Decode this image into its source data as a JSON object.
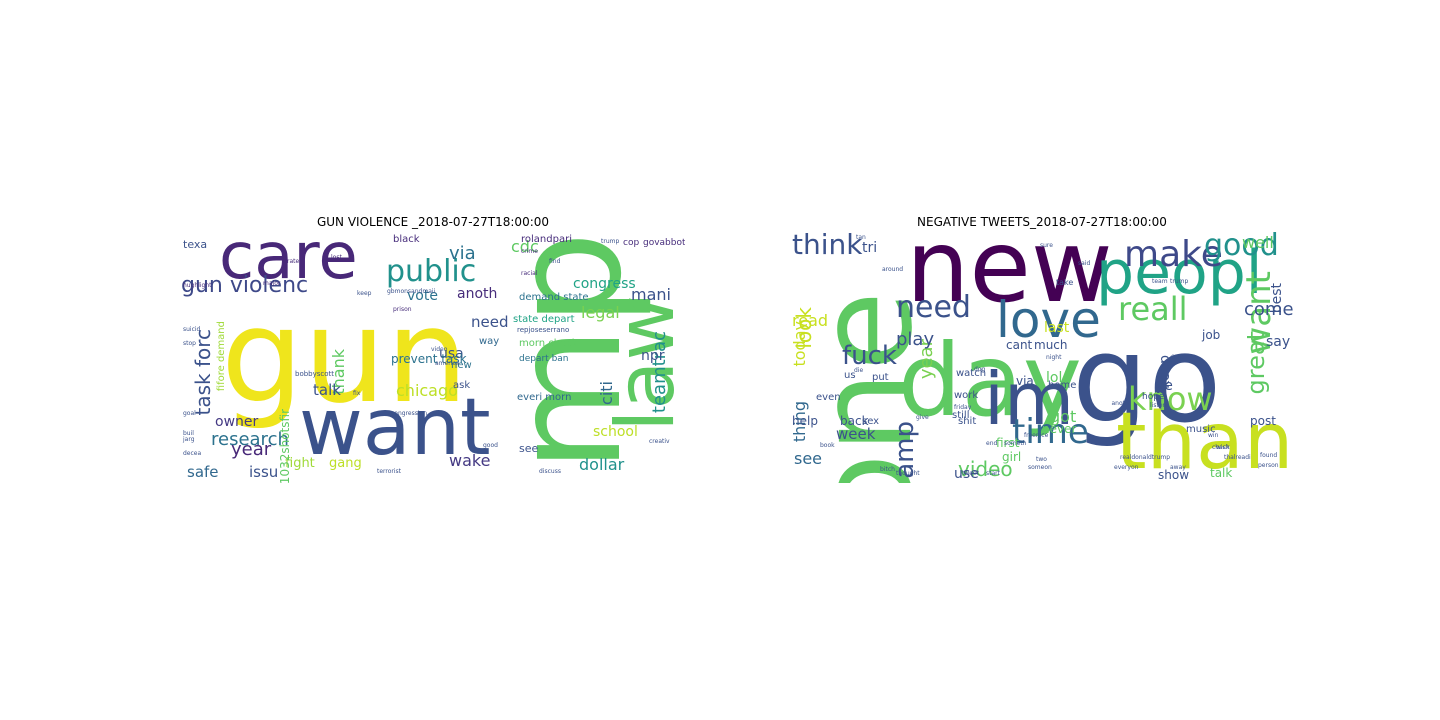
{
  "chart_data": [
    {
      "type": "wordcloud",
      "title": "GUN VIOLENCE _2018-07-27T18:00:00",
      "colormap": "viridis",
      "words": [
        {
          "text": "gun",
          "weight": 100,
          "color": "#efe51c"
        },
        {
          "text": "amp",
          "weight": 98,
          "color": "#5ec962"
        },
        {
          "text": "want",
          "weight": 72,
          "color": "#3b528b"
        },
        {
          "text": "care",
          "weight": 62,
          "color": "#482878"
        },
        {
          "text": "law",
          "weight": 58,
          "color": "#5ec962"
        },
        {
          "text": "public",
          "weight": 36,
          "color": "#21918c"
        },
        {
          "text": "gun violenc",
          "weight": 26,
          "color": "#3e4989"
        },
        {
          "text": "task forc",
          "weight": 22,
          "color": "#3b528b"
        },
        {
          "text": "research",
          "weight": 22,
          "color": "#2c728e"
        },
        {
          "text": "year",
          "weight": 20,
          "color": "#482878"
        },
        {
          "text": "thank",
          "weight": 19,
          "color": "#5ec962"
        },
        {
          "text": "teamtrac",
          "weight": 18,
          "color": "#21918c"
        },
        {
          "text": "legal",
          "weight": 18,
          "color": "#7ad151"
        },
        {
          "text": "chicago",
          "weight": 18,
          "color": "#bddf26"
        },
        {
          "text": "citi",
          "weight": 18,
          "color": "#31688e"
        },
        {
          "text": "mani",
          "weight": 18,
          "color": "#3b528b"
        },
        {
          "text": "via",
          "weight": 17,
          "color": "#2c728e"
        },
        {
          "text": "congress",
          "weight": 16,
          "color": "#20a386"
        },
        {
          "text": "wake",
          "weight": 16,
          "color": "#443983"
        },
        {
          "text": "dollar",
          "weight": 16,
          "color": "#21918c"
        },
        {
          "text": "safe",
          "weight": 16,
          "color": "#31688e"
        },
        {
          "text": "issu",
          "weight": 16,
          "color": "#3b528b"
        },
        {
          "text": "talk",
          "weight": 15,
          "color": "#3b528b"
        },
        {
          "text": "owner",
          "weight": 15,
          "color": "#443983"
        },
        {
          "text": "cdc",
          "weight": 15,
          "color": "#5ec962"
        },
        {
          "text": "need",
          "weight": 15,
          "color": "#3b528b"
        },
        {
          "text": "anoth",
          "weight": 14,
          "color": "#472d7b"
        },
        {
          "text": "school",
          "weight": 14,
          "color": "#bddf26"
        },
        {
          "text": "npr",
          "weight": 13,
          "color": "#3b528b"
        },
        {
          "text": "vote",
          "weight": 13,
          "color": "#2c728e"
        },
        {
          "text": "fight",
          "weight": 13,
          "color": "#a0da39"
        },
        {
          "text": "gang",
          "weight": 13,
          "color": "#bddf26"
        },
        {
          "text": "usa",
          "weight": 12,
          "color": "#3b528b"
        },
        {
          "text": "prevent task",
          "weight": 11,
          "color": "#2c728e"
        },
        {
          "text": "1032shotsfir",
          "weight": 11,
          "color": "#5ec962"
        },
        {
          "text": "texa",
          "weight": 11,
          "color": "#3b528b"
        },
        {
          "text": "black",
          "weight": 10,
          "color": "#472d7b"
        },
        {
          "text": "rolandpari",
          "weight": 10,
          "color": "#472d7b"
        },
        {
          "text": "demand state",
          "weight": 9,
          "color": "#2c728e"
        },
        {
          "text": "morn check",
          "weight": 10,
          "color": "#5ec962"
        },
        {
          "text": "everi morn",
          "weight": 10,
          "color": "#31688e"
        },
        {
          "text": "state depart",
          "weight": 10,
          "color": "#20a386"
        },
        {
          "text": "depart ban",
          "weight": 8,
          "color": "#2c728e"
        },
        {
          "text": "ask",
          "weight": 10,
          "color": "#3b528b"
        },
        {
          "text": "way",
          "weight": 9,
          "color": "#31688e"
        },
        {
          "text": "new",
          "weight": 9,
          "color": "#2c728e"
        },
        {
          "text": "see",
          "weight": 10,
          "color": "#3b528b"
        },
        {
          "text": "cop",
          "weight": 8,
          "color": "#472d7b"
        },
        {
          "text": "govabbott",
          "weight": 8,
          "color": "#472d7b"
        },
        {
          "text": "bobbyscott",
          "weight": 7,
          "color": "#3b528b"
        },
        {
          "text": "repjoseserrano",
          "weight": 7,
          "color": "#3b528b"
        },
        {
          "text": "gbmonsandmaii",
          "weight": 5,
          "color": "#3b528b"
        },
        {
          "text": "fifore demand",
          "weight": 8,
          "color": "#a0da39"
        },
        {
          "text": "major",
          "weight": 5,
          "color": "#472d7b"
        },
        {
          "text": "hughlight",
          "weight": 5,
          "color": "#472d7b"
        },
        {
          "text": "suicid",
          "weight": 5,
          "color": "#3b528b"
        },
        {
          "text": "prison",
          "weight": 5,
          "color": "#472d7b"
        },
        {
          "text": "crime",
          "weight": 5,
          "color": "#472d7b"
        },
        {
          "text": "racial",
          "weight": 5,
          "color": "#472d7b"
        },
        {
          "text": "video",
          "weight": 5,
          "color": "#3b528b"
        },
        {
          "text": "lost",
          "weight": 5,
          "color": "#472d7b"
        },
        {
          "text": "rate",
          "weight": 5,
          "color": "#472d7b"
        },
        {
          "text": "america",
          "weight": 5,
          "color": "#3b528b"
        },
        {
          "text": "congression",
          "weight": 5,
          "color": "#3b528b"
        },
        {
          "text": "terrorist",
          "weight": 5,
          "color": "#3b528b"
        },
        {
          "text": "discuss",
          "weight": 5,
          "color": "#3b528b"
        },
        {
          "text": "fix",
          "weight": 5,
          "color": "#3b528b"
        },
        {
          "text": "good",
          "weight": 5,
          "color": "#3b528b"
        },
        {
          "text": "creativ",
          "weight": 5,
          "color": "#3b528b"
        },
        {
          "text": "goal",
          "weight": 5,
          "color": "#3b528b"
        },
        {
          "text": "decea",
          "weight": 5,
          "color": "#3b528b"
        },
        {
          "text": "stop",
          "weight": 5,
          "color": "#3b528b"
        },
        {
          "text": "buil",
          "weight": 5,
          "color": "#3b528b"
        },
        {
          "text": "jarg",
          "weight": 5,
          "color": "#3b528b"
        },
        {
          "text": "find",
          "weight": 5,
          "color": "#3b528b"
        },
        {
          "text": "trump",
          "weight": 5,
          "color": "#3b528b"
        },
        {
          "text": "keep",
          "weight": 5,
          "color": "#3b528b"
        }
      ]
    },
    {
      "type": "wordcloud",
      "title": "NEGATIVE TWEETS_2018-07-27T18:00:00",
      "colormap": "viridis",
      "words": [
        {
          "text": "new",
          "weight": 100,
          "color": "#440154"
        },
        {
          "text": "one",
          "weight": 95,
          "color": "#5ec962"
        },
        {
          "text": "go",
          "weight": 92,
          "color": "#3b528b"
        },
        {
          "text": "day",
          "weight": 78,
          "color": "#5ec962"
        },
        {
          "text": "peopl",
          "weight": 60,
          "color": "#20a386"
        },
        {
          "text": "thank",
          "weight": 55,
          "color": "#c8e020"
        },
        {
          "text": "love",
          "weight": 42,
          "color": "#31688e"
        },
        {
          "text": "im",
          "weight": 48,
          "color": "#3b528b"
        },
        {
          "text": "time",
          "weight": 30,
          "color": "#31688e"
        },
        {
          "text": "make",
          "weight": 26,
          "color": "#3e4989"
        },
        {
          "text": "good",
          "weight": 24,
          "color": "#21918c"
        },
        {
          "text": "need",
          "weight": 24,
          "color": "#3b528b"
        },
        {
          "text": "want",
          "weight": 24,
          "color": "#5ec962"
        },
        {
          "text": "know",
          "weight": 22,
          "color": "#7ad151"
        },
        {
          "text": "reall",
          "weight": 22,
          "color": "#5ec962"
        },
        {
          "text": "think",
          "weight": 20,
          "color": "#3b528b"
        },
        {
          "text": "fuck",
          "weight": 18,
          "color": "#3b528b"
        },
        {
          "text": "amp",
          "weight": 18,
          "color": "#3b528b"
        },
        {
          "text": "great",
          "weight": 18,
          "color": "#5ec962"
        },
        {
          "text": "video",
          "weight": 16,
          "color": "#5ec962"
        },
        {
          "text": "year",
          "weight": 16,
          "color": "#7ad151"
        },
        {
          "text": "look",
          "weight": 16,
          "color": "#c8e020"
        },
        {
          "text": "play",
          "weight": 16,
          "color": "#3b528b"
        },
        {
          "text": "come",
          "weight": 16,
          "color": "#3b528b"
        },
        {
          "text": "today",
          "weight": 14,
          "color": "#c8e020"
        },
        {
          "text": "thing",
          "weight": 14,
          "color": "#31688e"
        },
        {
          "text": "well",
          "weight": 14,
          "color": "#5ec962"
        },
        {
          "text": "got",
          "weight": 14,
          "color": "#5ec962"
        },
        {
          "text": "read",
          "weight": 13,
          "color": "#c8e020"
        },
        {
          "text": "see",
          "weight": 13,
          "color": "#31688e"
        },
        {
          "text": "week",
          "weight": 12,
          "color": "#3b528b"
        },
        {
          "text": "say",
          "weight": 12,
          "color": "#3b528b"
        },
        {
          "text": "keep",
          "weight": 12,
          "color": "#3b528b"
        },
        {
          "text": "best",
          "weight": 11,
          "color": "#3b528b"
        },
        {
          "text": "tri",
          "weight": 11,
          "color": "#3b528b"
        },
        {
          "text": "last",
          "weight": 11,
          "color": "#c8e020"
        },
        {
          "text": "use",
          "weight": 11,
          "color": "#3b528b"
        },
        {
          "text": "lol",
          "weight": 10,
          "color": "#5ec962"
        },
        {
          "text": "help",
          "weight": 10,
          "color": "#3b528b"
        },
        {
          "text": "back",
          "weight": 10,
          "color": "#3b528b"
        },
        {
          "text": "job",
          "weight": 10,
          "color": "#3b528b"
        },
        {
          "text": "via",
          "weight": 10,
          "color": "#3b528b"
        },
        {
          "text": "girl",
          "weight": 10,
          "color": "#5ec962"
        },
        {
          "text": "show",
          "weight": 9,
          "color": "#3b528b"
        },
        {
          "text": "talk",
          "weight": 9,
          "color": "#5ec962"
        },
        {
          "text": "post",
          "weight": 9,
          "color": "#3b528b"
        },
        {
          "text": "never",
          "weight": 9,
          "color": "#5ec962"
        },
        {
          "text": "first",
          "weight": 9,
          "color": "#5ec962"
        },
        {
          "text": "cant",
          "weight": 9,
          "color": "#3b528b"
        },
        {
          "text": "much",
          "weight": 9,
          "color": "#3b528b"
        },
        {
          "text": "home",
          "weight": 8,
          "color": "#3b528b"
        },
        {
          "text": "work",
          "weight": 8,
          "color": "#3b528b"
        },
        {
          "text": "watch",
          "weight": 8,
          "color": "#3b528b"
        },
        {
          "text": "put",
          "weight": 8,
          "color": "#3b528b"
        },
        {
          "text": "even",
          "weight": 8,
          "color": "#3b528b"
        },
        {
          "text": "still",
          "weight": 8,
          "color": "#3b528b"
        },
        {
          "text": "us",
          "weight": 8,
          "color": "#3b528b"
        },
        {
          "text": "sex",
          "weight": 7,
          "color": "#3b528b"
        },
        {
          "text": "shit",
          "weight": 7,
          "color": "#3b528b"
        },
        {
          "text": "music",
          "weight": 7,
          "color": "#3b528b"
        },
        {
          "text": "hope",
          "weight": 6,
          "color": "#3b528b"
        },
        {
          "text": "ye",
          "weight": 8,
          "color": "#3b528b"
        },
        {
          "text": "take",
          "weight": 6,
          "color": "#3b528b"
        },
        {
          "text": "night",
          "weight": 5,
          "color": "#3b528b"
        },
        {
          "text": "listen",
          "weight": 5,
          "color": "#3b528b"
        },
        {
          "text": "start",
          "weight": 5,
          "color": "#3b528b"
        },
        {
          "text": "give",
          "weight": 5,
          "color": "#3b528b"
        },
        {
          "text": "tweet",
          "weight": 5,
          "color": "#3b528b"
        },
        {
          "text": "person",
          "weight": 5,
          "color": "#3b528b"
        },
        {
          "text": "bitch",
          "weight": 5,
          "color": "#3b528b"
        },
        {
          "text": "thought",
          "weight": 5,
          "color": "#3b528b"
        },
        {
          "text": "book",
          "weight": 5,
          "color": "#3b528b"
        },
        {
          "text": "check",
          "weight": 5,
          "color": "#3b528b"
        },
        {
          "text": "found",
          "weight": 5,
          "color": "#3b528b"
        },
        {
          "text": "done",
          "weight": 5,
          "color": "#3b528b"
        },
        {
          "text": "end",
          "weight": 5,
          "color": "#3b528b"
        },
        {
          "text": "two",
          "weight": 5,
          "color": "#3b528b"
        },
        {
          "text": "someth",
          "weight": 5,
          "color": "#3b528b"
        },
        {
          "text": "everyon",
          "weight": 5,
          "color": "#3b528b"
        },
        {
          "text": "win",
          "weight": 5,
          "color": "#3b528b"
        },
        {
          "text": "around",
          "weight": 5,
          "color": "#3b528b"
        },
        {
          "text": "friday",
          "weight": 5,
          "color": "#3b528b"
        },
        {
          "text": "trump",
          "weight": 5,
          "color": "#3b528b"
        },
        {
          "text": "team",
          "weight": 5,
          "color": "#3b528b"
        },
        {
          "text": "said",
          "weight": 5,
          "color": "#3b528b"
        },
        {
          "text": "sure",
          "weight": 5,
          "color": "#3b528b"
        },
        {
          "text": "dog",
          "weight": 5,
          "color": "#3b528b"
        },
        {
          "text": "tan",
          "weight": 5,
          "color": "#3b528b"
        },
        {
          "text": "someon",
          "weight": 5,
          "color": "#3b528b"
        },
        {
          "text": "realdonaldtrump",
          "weight": 5,
          "color": "#3b528b"
        },
        {
          "text": "thalreadi",
          "weight": 5,
          "color": "#3b528b"
        },
        {
          "text": "freenice",
          "weight": 5,
          "color": "#3b528b"
        },
        {
          "text": "wish",
          "weight": 5,
          "color": "#3b528b"
        },
        {
          "text": "away",
          "weight": 5,
          "color": "#3b528b"
        },
        {
          "text": "die",
          "weight": 5,
          "color": "#3b528b"
        },
        {
          "text": "anoth",
          "weight": 5,
          "color": "#3b528b"
        }
      ]
    }
  ]
}
